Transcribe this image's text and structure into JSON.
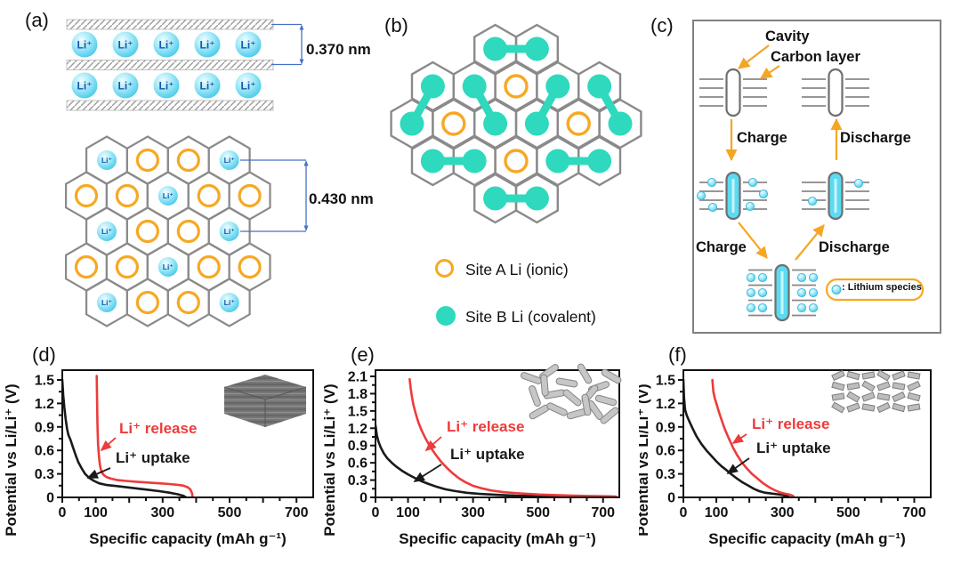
{
  "figure": {
    "panels": {
      "a": {
        "label": "(a)",
        "ion_label": "Li⁺",
        "interlayer_spacing": "0.370 nm",
        "site_spacing": "0.430 nm",
        "lattice_rows": [
          [
            "li",
            "ring",
            "ring",
            "li"
          ],
          [
            "ring",
            "ring",
            "li",
            "ring",
            "ring"
          ],
          [
            "li",
            "ring",
            "ring",
            "li"
          ],
          [
            "ring",
            "ring",
            "li",
            "ring",
            "ring"
          ],
          [
            "li",
            "ring",
            "ring",
            "li"
          ]
        ]
      },
      "b": {
        "label": "(b)",
        "rows": [
          {
            "count": 2,
            "offset": 2
          },
          {
            "count": 5,
            "offset": 0.5
          },
          {
            "count": 6,
            "offset": 0
          },
          {
            "count": 5,
            "offset": 0.5
          },
          {
            "count": 2,
            "offset": 2
          }
        ],
        "rings": [
          [
            1,
            2
          ],
          [
            2,
            1
          ],
          [
            2,
            4
          ],
          [
            3,
            2
          ]
        ],
        "bonds": [
          [
            [
              0,
              0
            ],
            [
              0,
              1
            ]
          ],
          [
            [
              1,
              0
            ],
            [
              2,
              0
            ]
          ],
          [
            [
              1,
              1
            ],
            [
              2,
              2
            ]
          ],
          [
            [
              1,
              3
            ],
            [
              2,
              3
            ]
          ],
          [
            [
              1,
              4
            ],
            [
              2,
              5
            ]
          ],
          [
            [
              3,
              0
            ],
            [
              3,
              1
            ]
          ],
          [
            [
              3,
              3
            ],
            [
              3,
              4
            ]
          ],
          [
            [
              4,
              0
            ],
            [
              4,
              1
            ]
          ]
        ],
        "legend": [
          {
            "symbol": "ring",
            "label": "Site A Li (ionic)"
          },
          {
            "symbol": "dot",
            "label": "Site B Li (covalent)"
          }
        ]
      },
      "c": {
        "label": "(c)",
        "cavity_label": "Cavity",
        "carbon_layer_label": "Carbon layer",
        "charge_label": "Charge",
        "discharge_label": "Discharge",
        "species_legend": ": Lithium species"
      }
    },
    "colors": {
      "site_b_teal": "#2ed9bd",
      "site_a_orange": "#f7a823",
      "ion_blue": "#63d5f0",
      "release_red": "#ee3b3b",
      "uptake_black": "#1a1a1a",
      "dimension_blue": "#4472c4",
      "arrow_orange": "#f5a623",
      "hex_gray": "#8a8a8a"
    }
  },
  "chart_data": [
    {
      "panel": "(d)",
      "type": "line",
      "xlabel": "Specific capacity (mAh g⁻¹)",
      "ylabel": "Potential vs Li/Li⁺ (V)",
      "xlim": [
        0,
        750
      ],
      "ylim": [
        0,
        1.5
      ],
      "xticks_labeled": [
        0,
        100,
        300,
        500,
        700
      ],
      "xtick_minor_step": 50,
      "ytick_step": 0.3,
      "grid": false,
      "series": [
        {
          "name": "Li⁺ uptake",
          "color": "#1a1a1a",
          "points": [
            [
              0,
              1.5
            ],
            [
              3,
              1.3
            ],
            [
              6,
              1.15
            ],
            [
              10,
              1.0
            ],
            [
              14,
              0.88
            ],
            [
              18,
              0.8
            ],
            [
              25,
              0.73
            ],
            [
              32,
              0.64
            ],
            [
              40,
              0.54
            ],
            [
              48,
              0.45
            ],
            [
              58,
              0.37
            ],
            [
              68,
              0.3
            ],
            [
              80,
              0.25
            ],
            [
              95,
              0.21
            ],
            [
              110,
              0.18
            ],
            [
              130,
              0.16
            ],
            [
              150,
              0.15
            ],
            [
              180,
              0.135
            ],
            [
              210,
              0.12
            ],
            [
              250,
              0.1
            ],
            [
              290,
              0.08
            ],
            [
              320,
              0.06
            ],
            [
              345,
              0.04
            ],
            [
              362,
              0.02
            ],
            [
              370,
              0.0
            ]
          ]
        },
        {
          "name": "Li⁺ release",
          "color": "#ee3b3b",
          "points": [
            [
              103,
              1.55
            ],
            [
              104,
              1.25
            ],
            [
              105,
              0.95
            ],
            [
              107,
              0.68
            ],
            [
              110,
              0.5
            ],
            [
              113,
              0.4
            ],
            [
              117,
              0.33
            ],
            [
              123,
              0.29
            ],
            [
              132,
              0.26
            ],
            [
              145,
              0.24
            ],
            [
              165,
              0.22
            ],
            [
              190,
              0.21
            ],
            [
              220,
              0.2
            ],
            [
              255,
              0.19
            ],
            [
              290,
              0.18
            ],
            [
              320,
              0.17
            ],
            [
              345,
              0.16
            ],
            [
              362,
              0.15
            ],
            [
              375,
              0.13
            ],
            [
              383,
              0.1
            ],
            [
              388,
              0.05
            ],
            [
              389,
              0.01
            ]
          ]
        }
      ]
    },
    {
      "panel": "(e)",
      "type": "line",
      "xlabel": "Specific capacity (mAh g⁻¹)",
      "ylabel": "Potential vs Li/Li⁺ (V)",
      "xlim": [
        0,
        750
      ],
      "ylim": [
        0,
        2.1
      ],
      "xticks_labeled": [
        0,
        100,
        300,
        500,
        700
      ],
      "xtick_minor_step": 50,
      "ytick_step": 0.3,
      "grid": false,
      "series": [
        {
          "name": "Li⁺ uptake",
          "color": "#1a1a1a",
          "points": [
            [
              0,
              1.25
            ],
            [
              4,
              1.08
            ],
            [
              9,
              0.97
            ],
            [
              16,
              0.87
            ],
            [
              25,
              0.77
            ],
            [
              36,
              0.68
            ],
            [
              50,
              0.6
            ],
            [
              65,
              0.53
            ],
            [
              82,
              0.46
            ],
            [
              100,
              0.4
            ],
            [
              120,
              0.34
            ],
            [
              142,
              0.28
            ],
            [
              165,
              0.23
            ],
            [
              190,
              0.18
            ],
            [
              215,
              0.14
            ],
            [
              245,
              0.11
            ],
            [
              280,
              0.08
            ],
            [
              320,
              0.06
            ],
            [
              370,
              0.045
            ],
            [
              430,
              0.03
            ],
            [
              500,
              0.02
            ],
            [
              580,
              0.012
            ],
            [
              660,
              0.006
            ],
            [
              720,
              0.0
            ]
          ]
        },
        {
          "name": "Li⁺ release",
          "color": "#ee3b3b",
          "points": [
            [
              105,
              2.05
            ],
            [
              108,
              1.9
            ],
            [
              112,
              1.75
            ],
            [
              117,
              1.6
            ],
            [
              124,
              1.45
            ],
            [
              132,
              1.3
            ],
            [
              142,
              1.16
            ],
            [
              154,
              1.02
            ],
            [
              168,
              0.88
            ],
            [
              184,
              0.75
            ],
            [
              200,
              0.63
            ],
            [
              218,
              0.52
            ],
            [
              237,
              0.42
            ],
            [
              257,
              0.33
            ],
            [
              278,
              0.26
            ],
            [
              300,
              0.2
            ],
            [
              325,
              0.16
            ],
            [
              355,
              0.12
            ],
            [
              395,
              0.09
            ],
            [
              445,
              0.07
            ],
            [
              505,
              0.05
            ],
            [
              575,
              0.035
            ],
            [
              650,
              0.025
            ],
            [
              720,
              0.018
            ],
            [
              740,
              0.015
            ]
          ]
        }
      ]
    },
    {
      "panel": "(f)",
      "type": "line",
      "xlabel": "Specific capacity (mAh g⁻¹)",
      "ylabel": "Potential vs Li/Li⁺ (V)",
      "xlim": [
        0,
        750
      ],
      "ylim": [
        0,
        1.5
      ],
      "xticks_labeled": [
        0,
        100,
        300,
        500,
        700
      ],
      "xtick_minor_step": 50,
      "ytick_step": 0.3,
      "grid": false,
      "series": [
        {
          "name": "Li⁺ uptake",
          "color": "#1a1a1a",
          "points": [
            [
              0,
              1.5
            ],
            [
              2,
              1.28
            ],
            [
              5,
              1.12
            ],
            [
              10,
              1.05
            ],
            [
              18,
              0.97
            ],
            [
              28,
              0.88
            ],
            [
              40,
              0.78
            ],
            [
              55,
              0.68
            ],
            [
              70,
              0.6
            ],
            [
              85,
              0.53
            ],
            [
              100,
              0.46
            ],
            [
              115,
              0.4
            ],
            [
              130,
              0.35
            ],
            [
              147,
              0.29
            ],
            [
              163,
              0.24
            ],
            [
              180,
              0.19
            ],
            [
              197,
              0.15
            ],
            [
              213,
              0.11
            ],
            [
              230,
              0.08
            ],
            [
              247,
              0.06
            ],
            [
              265,
              0.05
            ],
            [
              285,
              0.04
            ],
            [
              302,
              0.03
            ],
            [
              315,
              0.015
            ],
            [
              322,
              0.0
            ]
          ]
        },
        {
          "name": "Li⁺ release",
          "color": "#ee3b3b",
          "points": [
            [
              88,
              1.5
            ],
            [
              91,
              1.35
            ],
            [
              95,
              1.27
            ],
            [
              100,
              1.2
            ],
            [
              107,
              1.1
            ],
            [
              115,
              1.0
            ],
            [
              125,
              0.88
            ],
            [
              137,
              0.76
            ],
            [
              150,
              0.64
            ],
            [
              163,
              0.54
            ],
            [
              177,
              0.45
            ],
            [
              192,
              0.37
            ],
            [
              208,
              0.3
            ],
            [
              225,
              0.24
            ],
            [
              242,
              0.18
            ],
            [
              260,
              0.13
            ],
            [
              278,
              0.09
            ],
            [
              295,
              0.06
            ],
            [
              310,
              0.045
            ],
            [
              322,
              0.035
            ],
            [
              332,
              0.02
            ],
            [
              335,
              0.0
            ]
          ]
        }
      ]
    }
  ]
}
